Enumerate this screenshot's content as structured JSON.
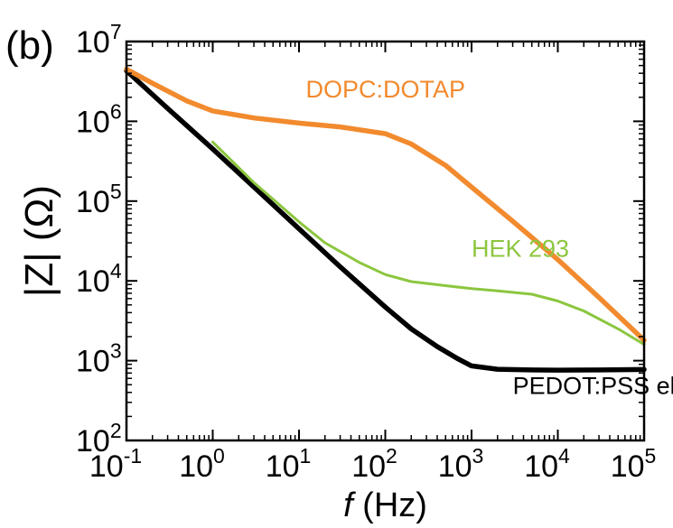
{
  "panel_label": "(b)",
  "chart_data": {
    "type": "line",
    "xscale": "log",
    "yscale": "log",
    "xlim": [
      0.1,
      100000
    ],
    "ylim": [
      100,
      10000000
    ],
    "x_ticks": [
      {
        "value": 0.1,
        "base": "10",
        "exp": "-1"
      },
      {
        "value": 1,
        "base": "10",
        "exp": "0"
      },
      {
        "value": 10,
        "base": "10",
        "exp": "1"
      },
      {
        "value": 100,
        "base": "10",
        "exp": "2"
      },
      {
        "value": 1000,
        "base": "10",
        "exp": "3"
      },
      {
        "value": 10000,
        "base": "10",
        "exp": "4"
      },
      {
        "value": 100000,
        "base": "10",
        "exp": "5"
      }
    ],
    "y_ticks": [
      {
        "value": 100,
        "base": "10",
        "exp": "2"
      },
      {
        "value": 1000,
        "base": "10",
        "exp": "3"
      },
      {
        "value": 10000,
        "base": "10",
        "exp": "4"
      },
      {
        "value": 100000,
        "base": "10",
        "exp": "5"
      },
      {
        "value": 1000000,
        "base": "10",
        "exp": "6"
      },
      {
        "value": 10000000,
        "base": "10",
        "exp": "7"
      }
    ],
    "xlabel": {
      "italic": "f",
      "rest": " (Hz)"
    },
    "ylabel": "|Z| (Ω)",
    "grid": false,
    "series": [
      {
        "name": "PEDOT:PSS electrode",
        "color": "#000000",
        "points": [
          [
            0.1,
            4300000
          ],
          [
            0.3,
            1450000
          ],
          [
            1,
            450000
          ],
          [
            3,
            150000
          ],
          [
            10,
            45000
          ],
          [
            30,
            15000
          ],
          [
            100,
            4700
          ],
          [
            200,
            2500
          ],
          [
            400,
            1500
          ],
          [
            700,
            1050
          ],
          [
            1000,
            860
          ],
          [
            2000,
            780
          ],
          [
            5000,
            765
          ],
          [
            10000,
            760
          ],
          [
            30000,
            765
          ],
          [
            100000,
            775
          ]
        ]
      },
      {
        "name": "HEK 293",
        "color": "#8cc63f",
        "points": [
          [
            1,
            550000
          ],
          [
            3,
            170000
          ],
          [
            10,
            55000
          ],
          [
            20,
            30000
          ],
          [
            50,
            17000
          ],
          [
            100,
            12000
          ],
          [
            200,
            9800
          ],
          [
            500,
            8700
          ],
          [
            1000,
            8000
          ],
          [
            2000,
            7500
          ],
          [
            5000,
            6800
          ],
          [
            10000,
            5600
          ],
          [
            20000,
            4200
          ],
          [
            50000,
            2500
          ],
          [
            100000,
            1600
          ]
        ]
      },
      {
        "name": "DOPC:DOTAP",
        "color": "#f28a2e",
        "points": [
          [
            0.1,
            4500000
          ],
          [
            0.2,
            3000000
          ],
          [
            0.5,
            1800000
          ],
          [
            1,
            1350000
          ],
          [
            3,
            1100000
          ],
          [
            10,
            950000
          ],
          [
            30,
            850000
          ],
          [
            100,
            700000
          ],
          [
            200,
            520000
          ],
          [
            500,
            280000
          ],
          [
            1000,
            150000
          ],
          [
            3000,
            56000
          ],
          [
            10000,
            18500
          ],
          [
            30000,
            6200
          ],
          [
            100000,
            1800
          ]
        ]
      }
    ],
    "annotations": [
      {
        "text": "DOPC:DOTAP",
        "color": "#f28a2e",
        "x": 12,
        "y": 2000000
      },
      {
        "text": "HEK 293",
        "color": "#8cc63f",
        "x": 1000,
        "y": 20000
      },
      {
        "text": "PEDOT:PSS electrode",
        "color": "#000000",
        "x": 3000,
        "y": 380
      }
    ]
  }
}
